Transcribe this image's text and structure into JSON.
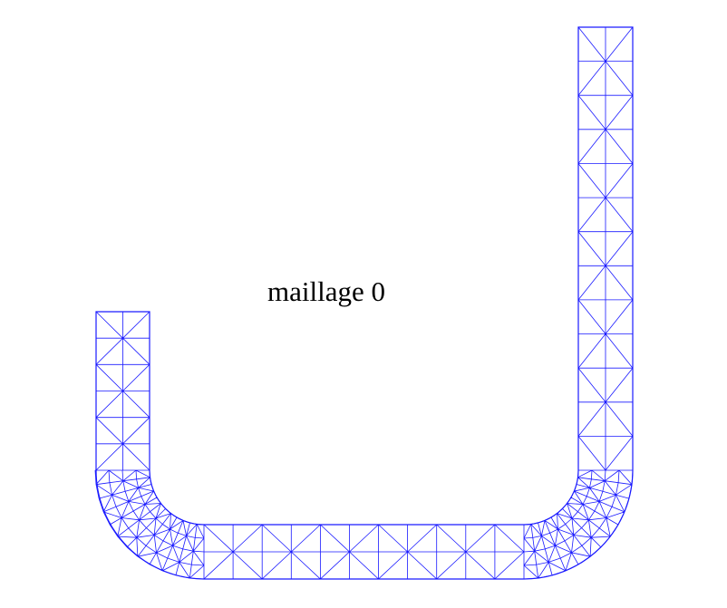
{
  "title": "maillage 0",
  "colors": {
    "mesh": "#1a1aff",
    "background": "#ffffff",
    "text": "#000000"
  }
}
